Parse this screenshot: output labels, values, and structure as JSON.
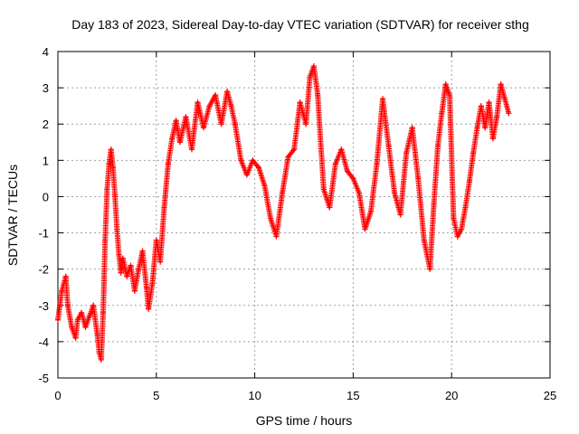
{
  "chart_data": {
    "type": "scatter",
    "title": "Day 183 of 2023, Sidereal Day-to-day VTEC variation (SDTVAR) for receiver sthg",
    "xlabel": "GPS time / hours",
    "ylabel": "SDTVAR / TECUs",
    "xlim": [
      0,
      25
    ],
    "ylim": [
      -5,
      4
    ],
    "xticks": [
      "0",
      "5",
      "10",
      "15",
      "20",
      "25"
    ],
    "yticks": [
      "4",
      "3",
      "2",
      "1",
      "0",
      "-1",
      "-2",
      "-3",
      "-4",
      "-5"
    ],
    "grid": true,
    "marker": "+",
    "color": "#ff0000",
    "series": [
      {
        "name": "SDTVAR",
        "x": [
          0.0,
          0.2,
          0.4,
          0.5,
          0.7,
          0.9,
          1.0,
          1.2,
          1.4,
          1.6,
          1.8,
          2.0,
          2.1,
          2.2,
          2.3,
          2.4,
          2.5,
          2.6,
          2.7,
          2.8,
          2.9,
          3.0,
          3.1,
          3.2,
          3.3,
          3.5,
          3.7,
          3.9,
          4.1,
          4.3,
          4.5,
          4.6,
          4.8,
          5.0,
          5.2,
          5.4,
          5.6,
          5.8,
          6.0,
          6.2,
          6.5,
          6.8,
          7.1,
          7.4,
          7.7,
          8.0,
          8.3,
          8.6,
          8.8,
          9.0,
          9.3,
          9.6,
          9.9,
          10.2,
          10.5,
          10.8,
          11.1,
          11.4,
          11.7,
          12.0,
          12.3,
          12.6,
          12.8,
          13.0,
          13.2,
          13.5,
          13.8,
          14.1,
          14.4,
          14.7,
          15.0,
          15.3,
          15.6,
          15.9,
          16.2,
          16.5,
          16.8,
          17.1,
          17.4,
          17.7,
          18.0,
          18.3,
          18.6,
          18.9,
          19.1,
          19.3,
          19.5,
          19.7,
          19.9,
          20.1,
          20.3,
          20.5,
          20.7,
          20.9,
          21.1,
          21.3,
          21.5,
          21.7,
          21.9,
          22.1,
          22.3,
          22.5,
          22.7,
          22.9
        ],
        "y": [
          -3.4,
          -2.6,
          -2.2,
          -3.0,
          -3.6,
          -3.9,
          -3.4,
          -3.2,
          -3.6,
          -3.3,
          -3.0,
          -3.8,
          -4.3,
          -4.5,
          -3.2,
          -1.2,
          0.2,
          0.9,
          1.3,
          0.8,
          0.0,
          -0.9,
          -1.6,
          -2.1,
          -1.7,
          -2.2,
          -1.9,
          -2.6,
          -2.0,
          -1.5,
          -2.5,
          -3.1,
          -2.4,
          -1.2,
          -1.8,
          -0.3,
          0.9,
          1.6,
          2.1,
          1.5,
          2.2,
          1.3,
          2.6,
          1.9,
          2.5,
          2.8,
          2.0,
          2.9,
          2.5,
          2.0,
          1.0,
          0.6,
          1.0,
          0.8,
          0.3,
          -0.6,
          -1.1,
          0.1,
          1.1,
          1.3,
          2.6,
          2.0,
          3.3,
          3.6,
          2.8,
          0.2,
          -0.3,
          0.9,
          1.3,
          0.7,
          0.5,
          0.1,
          -0.9,
          -0.4,
          0.9,
          2.7,
          1.4,
          0.1,
          -0.5,
          1.2,
          1.9,
          0.5,
          -1.2,
          -2.0,
          -0.2,
          1.4,
          2.3,
          3.1,
          2.8,
          -0.6,
          -1.1,
          -0.9,
          -0.3,
          0.4,
          1.2,
          1.9,
          2.5,
          1.9,
          2.6,
          1.6,
          2.2,
          3.1,
          2.7,
          2.3
        ]
      }
    ]
  }
}
